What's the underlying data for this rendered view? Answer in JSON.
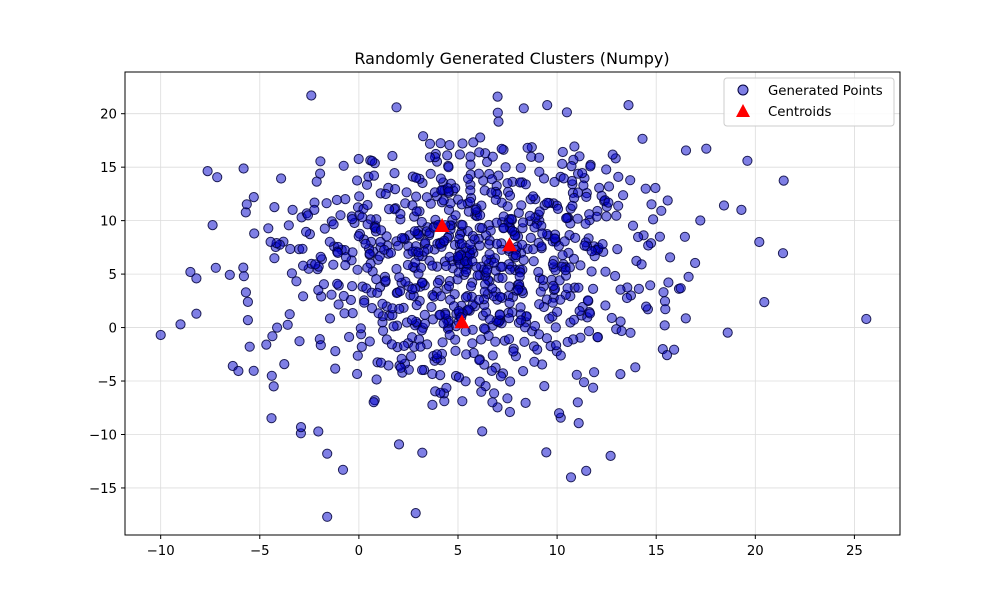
{
  "colors": {
    "points_fill": "#0000cc",
    "points_edge": "#00003a",
    "centroid": "#ff0000",
    "grid": "#dcdcdc",
    "axes": "#000000",
    "background": "#ffffff"
  },
  "chart_data": {
    "type": "scatter",
    "title": "Randomly Generated Clusters (Numpy)",
    "xlabel": "",
    "ylabel": "",
    "xlim": [
      -11.8,
      27.3
    ],
    "ylim": [
      -19.4,
      23.9
    ],
    "x_ticks": [
      -10,
      -5,
      0,
      5,
      10,
      15,
      20,
      25
    ],
    "y_ticks": [
      -15,
      -10,
      -5,
      0,
      5,
      10,
      15,
      20
    ],
    "x_tick_labels": [
      "−10",
      "−5",
      "0",
      "5",
      "10",
      "15",
      "20",
      "25"
    ],
    "y_tick_labels": [
      "−15",
      "−10",
      "−5",
      "0",
      "5",
      "10",
      "15",
      "20"
    ],
    "grid": true,
    "legend_position": "top-right",
    "series": [
      {
        "name": "Generated Points",
        "marker": "circle",
        "point_count": 900,
        "clusters": [
          {
            "center": [
              4.2,
              9.4
            ],
            "std": 4.6,
            "count": 300
          },
          {
            "center": [
              7.6,
              7.6
            ],
            "std": 4.6,
            "count": 300
          },
          {
            "center": [
              5.2,
              0.4
            ],
            "std": 4.6,
            "count": 300
          }
        ],
        "notable_points": [
          {
            "x": -10.0,
            "y": -0.7
          },
          {
            "x": -9.0,
            "y": 0.3
          },
          {
            "x": -8.5,
            "y": 5.2
          },
          {
            "x": -8.2,
            "y": 4.6
          },
          {
            "x": -8.2,
            "y": 1.3
          },
          {
            "x": -5.8,
            "y": 4.8
          },
          {
            "x": -5.6,
            "y": 2.4
          },
          {
            "x": -5.6,
            "y": 0.7
          },
          {
            "x": -5.3,
            "y": 12.2
          },
          {
            "x": -4.3,
            "y": -5.5
          },
          {
            "x": -2.4,
            "y": 21.7
          },
          {
            "x": -1.6,
            "y": -11.8
          },
          {
            "x": -1.6,
            "y": -17.7
          },
          {
            "x": -0.8,
            "y": -13.3
          },
          {
            "x": 1.9,
            "y": 20.6
          },
          {
            "x": 3.2,
            "y": -11.7
          },
          {
            "x": 7.0,
            "y": 21.6
          },
          {
            "x": 9.5,
            "y": 20.8
          },
          {
            "x": 10.7,
            "y": -14.0
          },
          {
            "x": 12.7,
            "y": -12.0
          },
          {
            "x": 13.6,
            "y": 20.8
          },
          {
            "x": 19.3,
            "y": 11.0
          },
          {
            "x": 19.6,
            "y": 15.6
          },
          {
            "x": 20.2,
            "y": 8.0
          },
          {
            "x": 25.6,
            "y": 0.8
          }
        ]
      },
      {
        "name": "Centroids",
        "marker": "triangle",
        "points": [
          {
            "x": 4.2,
            "y": 9.4
          },
          {
            "x": 7.6,
            "y": 7.6
          },
          {
            "x": 5.2,
            "y": 0.4
          }
        ]
      }
    ]
  }
}
